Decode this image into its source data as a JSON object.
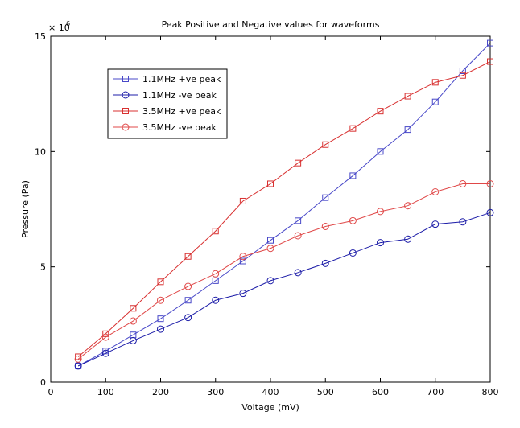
{
  "chart_data": {
    "type": "line",
    "title": "Peak Positive and Negative values for waveforms",
    "xlabel": "Voltage (mV)",
    "ylabel": "Pressure (Pa)",
    "y_multiplier_label": "× 10",
    "y_multiplier_exponent": "6",
    "xlim": [
      0,
      800
    ],
    "ylim": [
      0,
      15
    ],
    "x_ticks": [
      0,
      100,
      200,
      300,
      400,
      500,
      600,
      700,
      800
    ],
    "y_ticks": [
      0,
      5,
      10,
      15
    ],
    "grid": false,
    "legend_position": "top-left",
    "x": [
      50,
      100,
      150,
      200,
      250,
      300,
      350,
      400,
      450,
      500,
      550,
      600,
      650,
      700,
      750,
      800
    ],
    "series": [
      {
        "name": "1.1MHz +ve peak",
        "color": "#4848c8",
        "marker": "square",
        "values": [
          0.7,
          1.35,
          2.05,
          2.75,
          3.55,
          4.4,
          5.25,
          6.15,
          7.0,
          8.0,
          8.95,
          10.0,
          10.95,
          12.15,
          13.5,
          14.7
        ]
      },
      {
        "name": "1.1MHz -ve peak",
        "color": "#1c1ca8",
        "marker": "circle",
        "values": [
          0.7,
          1.25,
          1.8,
          2.3,
          2.8,
          3.55,
          3.85,
          4.4,
          4.75,
          5.15,
          5.6,
          6.05,
          6.2,
          6.85,
          6.95,
          7.35
        ]
      },
      {
        "name": "3.5MHz +ve peak",
        "color": "#d83030",
        "marker": "square",
        "values": [
          1.1,
          2.1,
          3.2,
          4.35,
          5.45,
          6.55,
          7.85,
          8.6,
          9.5,
          10.3,
          11.0,
          11.75,
          12.4,
          13.0,
          13.3,
          13.9
        ]
      },
      {
        "name": "3.5MHz -ve peak",
        "color": "#e04848",
        "marker": "circle",
        "values": [
          1.0,
          1.95,
          2.65,
          3.55,
          4.15,
          4.7,
          5.45,
          5.8,
          6.35,
          6.75,
          7.0,
          7.4,
          7.65,
          8.25,
          8.6,
          8.6
        ]
      }
    ]
  }
}
